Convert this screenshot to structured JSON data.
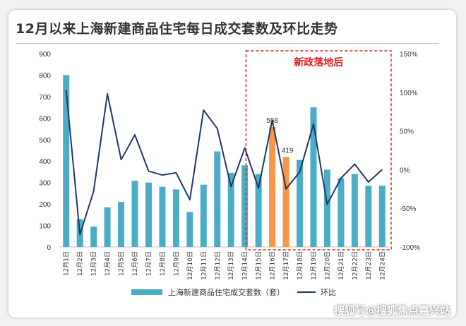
{
  "title": "12月以来上海新建商品住宅每日成交套数及环比走势",
  "annotation": "新政落地后",
  "watermark": "搜狐号@搜狐焦点嘉兴站",
  "chart_data": {
    "type": "bar",
    "categories": [
      "12月1日",
      "12月2日",
      "12月3日",
      "12月4日",
      "12月5日",
      "12月6日",
      "12月7日",
      "12月8日",
      "12月9日",
      "12月10日",
      "12月11日",
      "12月12日",
      "12月13日",
      "12月14日",
      "12月15日",
      "12月16日",
      "12月17日",
      "12月18日",
      "12月19日",
      "12月20日",
      "12月21日",
      "12月22日",
      "12月23日",
      "12月24日"
    ],
    "series": [
      {
        "name": "上海新建商品住宅成交套数（套）",
        "type": "bar",
        "axis": "left",
        "values": [
          800,
          130,
          95,
          185,
          210,
          308,
          300,
          280,
          268,
          163,
          290,
          445,
          345,
          380,
          340,
          558,
          419,
          405,
          650,
          360,
          320,
          340,
          285,
          285
        ]
      },
      {
        "name": "环比",
        "type": "line",
        "axis": "right",
        "values": [
          103,
          -84,
          -28,
          98,
          13,
          45,
          -2,
          -7,
          -4,
          -39,
          77,
          53,
          -22,
          28,
          -24,
          64,
          -25,
          -3,
          59,
          -45,
          -11,
          7,
          -16,
          0
        ]
      }
    ],
    "highlight_indices": [
      15,
      16
    ],
    "data_labels": [
      {
        "index": 15,
        "text": "558"
      },
      {
        "index": 16,
        "text": "419"
      }
    ],
    "left_axis": {
      "ylim": [
        0,
        900
      ],
      "ticks": [
        "0",
        "100",
        "200",
        "300",
        "400",
        "500",
        "600",
        "700",
        "800",
        "900"
      ]
    },
    "right_axis": {
      "ylim": [
        -100,
        150
      ],
      "ticks": [
        "-100%",
        "-50%",
        "0%",
        "50%",
        "100%",
        "150%"
      ]
    },
    "highlight_range": {
      "start_index": 14,
      "end_index": 23
    },
    "colors": {
      "bar": "#4bacc6",
      "highlight_bar": "#f79646",
      "line": "#1f3864",
      "box": "#e02020",
      "annotation": "#e02020"
    },
    "legend": "bottom-center"
  }
}
